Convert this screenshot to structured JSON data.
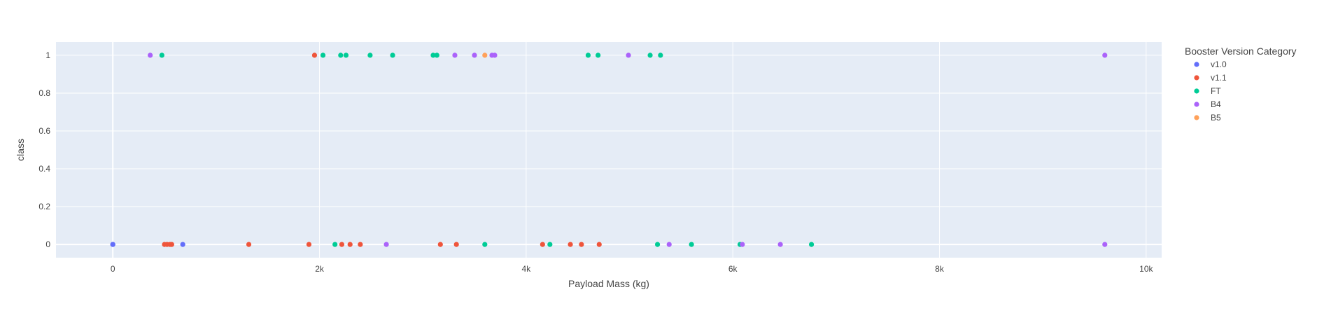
{
  "chart_data": {
    "type": "scatter",
    "xlabel": "Payload Mass (kg)",
    "ylabel": "class",
    "xlim": [
      -550,
      10150
    ],
    "ylim": [
      -0.07,
      1.07
    ],
    "x_ticks": [
      0,
      2000,
      4000,
      6000,
      8000,
      10000
    ],
    "x_tick_labels": [
      "0",
      "2k",
      "4k",
      "6k",
      "8k",
      "10k"
    ],
    "y_ticks": [
      0,
      0.2,
      0.4,
      0.6,
      0.8,
      1
    ],
    "y_tick_labels": [
      "0",
      "0.2",
      "0.4",
      "0.6",
      "0.8",
      "1"
    ],
    "grid": true,
    "plot_bg": "#e5ecf6",
    "grid_color": "#ffffff",
    "legend": {
      "title": "Booster Version Category",
      "placement": "top-right-outside"
    },
    "series": [
      {
        "name": "v1.0",
        "color": "#636efa",
        "x": [
          0,
          0,
          677
        ],
        "y": [
          0,
          0,
          0
        ]
      },
      {
        "name": "v1.1",
        "color": "#EF553B",
        "x": [
          500,
          525,
          553,
          570,
          1316,
          1898,
          1952,
          2216,
          2296,
          2395,
          3170,
          3325,
          4159,
          4428,
          4535,
          4707
        ],
        "y": [
          0,
          0,
          0,
          0,
          0,
          0,
          1,
          0,
          0,
          0,
          0,
          0,
          0,
          0,
          0,
          0
        ]
      },
      {
        "name": "FT",
        "color": "#00cc96",
        "x": [
          475,
          2034,
          2150,
          2205,
          2257,
          2490,
          2708,
          3100,
          3136,
          3600,
          4230,
          4600,
          4696,
          5200,
          5300,
          5271,
          5600,
          6070,
          6761
        ],
        "y": [
          1,
          1,
          0,
          1,
          1,
          1,
          1,
          1,
          1,
          0,
          0,
          1,
          1,
          1,
          1,
          0,
          0,
          0,
          0
        ],
        "note_omitted": ""
      },
      {
        "name": "B4",
        "color": "#ab63fa",
        "x": [
          362,
          2647,
          3310,
          3500,
          3669,
          3696,
          4990,
          5384,
          6092,
          6460,
          9600,
          9600
        ],
        "y": [
          1,
          0,
          1,
          1,
          1,
          1,
          1,
          0,
          0,
          0,
          1,
          0
        ]
      },
      {
        "name": "B5",
        "color": "#FFA15A",
        "x": [
          3600
        ],
        "y": [
          1
        ]
      }
    ]
  }
}
